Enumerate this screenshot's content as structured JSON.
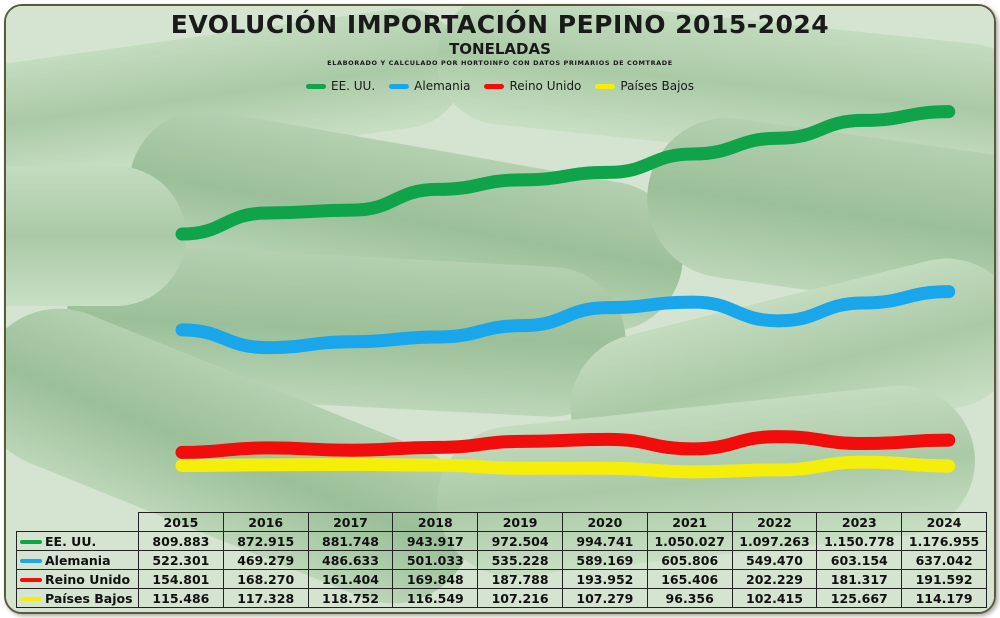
{
  "title": "EVOLUCIÓN IMPORTACIÓN PEPINO 2015-2024",
  "subtitle": "TONELADAS",
  "note": "ELABORADO Y CALCULADO POR HORTOINFO CON DATOS PRIMARIOS DE COMTRADE",
  "colors": {
    "EE. UU.": "#0fa34a",
    "Alemania": "#1aa6ea",
    "Reino Unido": "#f20d0d",
    "Países Bajos": "#f5ee0a"
  },
  "chart_data": {
    "type": "line",
    "title": "EVOLUCIÓN IMPORTACIÓN PEPINO 2015-2024",
    "subtitle": "TONELADAS",
    "x": [
      "2015",
      "2016",
      "2017",
      "2018",
      "2019",
      "2020",
      "2021",
      "2022",
      "2023",
      "2024"
    ],
    "ylim": [
      0,
      1200000
    ],
    "grid": false,
    "legend_position": "top-center",
    "series": [
      {
        "name": "EE. UU.",
        "values": [
          809883,
          872915,
          881748,
          943917,
          972504,
          994741,
          1050027,
          1097263,
          1150778,
          1176955
        ],
        "labels": [
          "809.883",
          "872.915",
          "881.748",
          "943.917",
          "972.504",
          "994.741",
          "1.050.027",
          "1.097.263",
          "1.150.778",
          "1.176.955"
        ]
      },
      {
        "name": "Alemania",
        "values": [
          522301,
          469279,
          486633,
          501033,
          535228,
          589169,
          605806,
          549470,
          603154,
          637042
        ],
        "labels": [
          "522.301",
          "469.279",
          "486.633",
          "501.033",
          "535.228",
          "589.169",
          "605.806",
          "549.470",
          "603.154",
          "637.042"
        ]
      },
      {
        "name": "Reino Unido",
        "values": [
          154801,
          168270,
          161404,
          169848,
          187788,
          193952,
          165406,
          202229,
          181317,
          191592
        ],
        "labels": [
          "154.801",
          "168.270",
          "161.404",
          "169.848",
          "187.788",
          "193.952",
          "165.406",
          "202.229",
          "181.317",
          "191.592"
        ]
      },
      {
        "name": "Países Bajos",
        "values": [
          115486,
          117328,
          118752,
          116549,
          107216,
          107279,
          96356,
          102415,
          125667,
          114179
        ],
        "labels": [
          "115.486",
          "117.328",
          "118.752",
          "116.549",
          "107.216",
          "107.279",
          "96.356",
          "102.415",
          "125.667",
          "114.179"
        ]
      }
    ]
  }
}
